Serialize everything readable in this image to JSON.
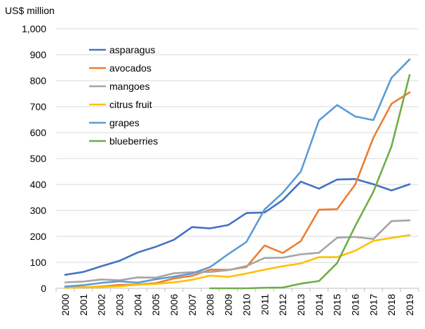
{
  "chart_data": {
    "type": "line",
    "title": "",
    "ylabel": "US$ million",
    "xlabel": "",
    "ylim": [
      0,
      1000
    ],
    "yticks": [
      0,
      100,
      200,
      300,
      400,
      500,
      600,
      700,
      800,
      900,
      1000
    ],
    "ytick_labels": [
      "0",
      "100",
      "200",
      "300",
      "400",
      "500",
      "600",
      "700",
      "800",
      "900",
      "1,000"
    ],
    "grid": "horizontal",
    "legend_position": "top-left",
    "categories": [
      "2000",
      "2001",
      "2002",
      "2003",
      "2004",
      "2005",
      "2006",
      "2007",
      "2008",
      "2009",
      "2010",
      "2011",
      "2012",
      "2013",
      "2014",
      "2015",
      "2016",
      "2017",
      "2018",
      "2019"
    ],
    "series": [
      {
        "name": "asparagus",
        "color": "#4472C4",
        "values": [
          52,
          63,
          85,
          106,
          138,
          160,
          187,
          236,
          231,
          244,
          290,
          292,
          340,
          411,
          384,
          419,
          421,
          401,
          377,
          401
        ]
      },
      {
        "name": "avocados",
        "color": "#ED7D31",
        "values": [
          5,
          4,
          7,
          13,
          15,
          20,
          38,
          48,
          72,
          71,
          82,
          165,
          136,
          182,
          303,
          305,
          400,
          580,
          711,
          755
        ]
      },
      {
        "name": "mangoes",
        "color": "#A5A5A5",
        "values": [
          23,
          26,
          34,
          31,
          42,
          41,
          58,
          62,
          63,
          70,
          86,
          117,
          118,
          131,
          137,
          195,
          198,
          190,
          259,
          262
        ]
      },
      {
        "name": "citrus fruit",
        "color": "#FFC000",
        "values": [
          2,
          4,
          5,
          8,
          14,
          17,
          23,
          33,
          49,
          44,
          57,
          72,
          85,
          96,
          120,
          120,
          145,
          183,
          194,
          205
        ]
      },
      {
        "name": "grapes",
        "color": "#5B9BD5",
        "values": [
          7,
          12,
          21,
          27,
          22,
          35,
          45,
          57,
          82,
          132,
          179,
          304,
          368,
          450,
          647,
          706,
          662,
          648,
          811,
          882
        ]
      },
      {
        "name": "blueberries",
        "color": "#70AD47",
        "values": [
          null,
          null,
          null,
          null,
          null,
          null,
          null,
          null,
          0,
          0,
          0,
          2,
          3,
          18,
          28,
          97,
          240,
          372,
          547,
          822
        ]
      }
    ]
  }
}
